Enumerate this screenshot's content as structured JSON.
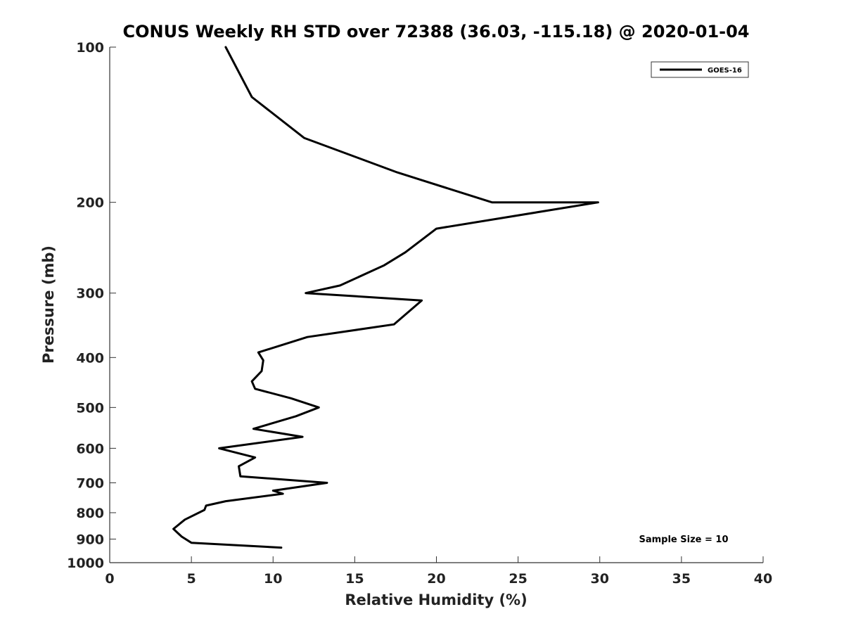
{
  "chart_data": {
    "type": "line",
    "title": "CONUS Weekly RH STD over 72388 (36.03, -115.18) @ 2020-01-04",
    "xlabel": "Relative Humidity (%)",
    "ylabel": "Pressure (mb)",
    "xlim": [
      0,
      40
    ],
    "ylim": [
      100,
      1000
    ],
    "y_scale": "log",
    "y_reversed": true,
    "x_ticks": [
      "0",
      "5",
      "10",
      "15",
      "20",
      "25",
      "30",
      "35",
      "40"
    ],
    "y_ticks": [
      "100",
      "200",
      "300",
      "400",
      "500",
      "600",
      "700",
      "800",
      "900",
      "1000"
    ],
    "grid": false,
    "legend_position": "top-right",
    "annotation": "Sample Size = 10",
    "series": [
      {
        "name": "GOES-16",
        "color": "#000000",
        "points": [
          [
            7.1,
            100
          ],
          [
            8.7,
            125
          ],
          [
            11.9,
            150
          ],
          [
            17.6,
            175
          ],
          [
            23.4,
            200
          ],
          [
            29.9,
            200
          ],
          [
            20.0,
            225
          ],
          [
            18.1,
            250
          ],
          [
            16.8,
            265
          ],
          [
            14.1,
            290
          ],
          [
            12.0,
            300
          ],
          [
            19.1,
            310
          ],
          [
            17.4,
            345
          ],
          [
            12.1,
            365
          ],
          [
            9.1,
            391
          ],
          [
            9.4,
            405
          ],
          [
            9.3,
            425
          ],
          [
            8.7,
            445
          ],
          [
            8.9,
            460
          ],
          [
            11.1,
            480
          ],
          [
            12.8,
            500
          ],
          [
            11.4,
            520
          ],
          [
            8.8,
            550
          ],
          [
            11.8,
            570
          ],
          [
            6.7,
            600
          ],
          [
            8.9,
            625
          ],
          [
            7.9,
            650
          ],
          [
            8.0,
            680
          ],
          [
            13.3,
            700
          ],
          [
            10.0,
            725
          ],
          [
            10.6,
            735
          ],
          [
            7.1,
            760
          ],
          [
            5.9,
            775
          ],
          [
            5.8,
            790
          ],
          [
            4.6,
            825
          ],
          [
            3.9,
            860
          ],
          [
            4.4,
            890
          ],
          [
            5.0,
            915
          ],
          [
            10.5,
            935
          ]
        ]
      }
    ]
  }
}
